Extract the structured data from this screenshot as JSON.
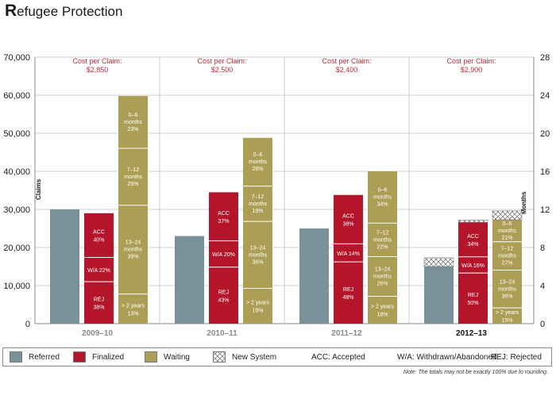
{
  "title": {
    "cap": "R",
    "rest": "efugee Protection"
  },
  "chart_data": {
    "type": "bar",
    "categories": [
      "2009–10",
      "2010–11",
      "2011–12",
      "2012–13"
    ],
    "highlight_category": "2012–13",
    "ylabel": "Claims",
    "ylabel_right": "Months",
    "ylim": [
      0,
      70000
    ],
    "ylim_right": [
      0,
      28
    ],
    "yticks": [
      "0",
      "10,000",
      "20,000",
      "30,000",
      "40,000",
      "50,000",
      "60,000",
      "70,000"
    ],
    "yticks_right": [
      "0",
      "4",
      "8",
      "12",
      "16",
      "20",
      "24",
      "28"
    ],
    "cost_label": "Cost per Claim:",
    "costs": [
      "$2,850",
      "$2,500",
      "$2,400",
      "$2,900"
    ],
    "series": [
      {
        "name": "Referred",
        "values": [
          30000,
          23000,
          25000,
          15000
        ],
        "new_system": [
          0,
          0,
          0,
          2300
        ]
      },
      {
        "name": "Finalized",
        "values": [
          29000,
          34500,
          33800,
          26600
        ],
        "new_system": [
          0,
          0,
          0,
          600
        ],
        "segments": [
          [
            {
              "top": "ACC",
              "bottom": "40%"
            },
            {
              "top": "W/A 22%",
              "bottom": ""
            },
            {
              "top": "REJ",
              "bottom": "38%"
            }
          ],
          [
            {
              "top": "ACC",
              "bottom": "37%"
            },
            {
              "top": "W/A 20%",
              "bottom": ""
            },
            {
              "top": "REJ",
              "bottom": "43%"
            }
          ],
          [
            {
              "top": "ACC",
              "bottom": "38%"
            },
            {
              "top": "W/A 14%",
              "bottom": ""
            },
            {
              "top": "REJ",
              "bottom": "48%"
            }
          ],
          [
            {
              "top": "ACC",
              "bottom": "34%"
            },
            {
              "top": "W/A 16%",
              "bottom": ""
            },
            {
              "top": "REJ",
              "bottom": "50%"
            }
          ]
        ]
      },
      {
        "name": "Waiting",
        "values": [
          59800,
          48800,
          40000,
          27300
        ],
        "new_system": [
          0,
          0,
          0,
          2300
        ],
        "segments": [
          [
            {
              "l1": "0–6",
              "l2": "months",
              "l3": "23%"
            },
            {
              "l1": "7–12",
              "l2": "months",
              "l3": "25%"
            },
            {
              "l1": "13–24",
              "l2": "months",
              "l3": "39%"
            },
            {
              "l1": "> 2 years",
              "l2": "13%",
              "l3": ""
            }
          ],
          [
            {
              "l1": "0–6",
              "l2": "months",
              "l3": "26%"
            },
            {
              "l1": "7–12",
              "l2": "months",
              "l3": "19%"
            },
            {
              "l1": "13–24",
              "l2": "months",
              "l3": "36%"
            },
            {
              "l1": "> 2 years",
              "l2": "19%",
              "l3": ""
            }
          ],
          [
            {
              "l1": "0–6",
              "l2": "months",
              "l3": "34%"
            },
            {
              "l1": "7–12",
              "l2": "months",
              "l3": "22%"
            },
            {
              "l1": "13–24",
              "l2": "months",
              "l3": "26%"
            },
            {
              "l1": "> 2 years",
              "l2": "18%",
              "l3": ""
            }
          ],
          [
            {
              "l1": "0–6",
              "l2": "months",
              "l3": "21%"
            },
            {
              "l1": "7–12",
              "l2": "months",
              "l3": "27%"
            },
            {
              "l1": "13–24",
              "l2": "months",
              "l3": "36%"
            },
            {
              "l1": "> 2 years",
              "l2": "15%",
              "l3": ""
            }
          ]
        ]
      }
    ],
    "colors": {
      "referred": "#7a919c",
      "finalized": "#b5152b",
      "waiting": "#ad9e55",
      "cost": "#c0283a"
    }
  },
  "legend": {
    "referred": "Referred",
    "finalized": "Finalized",
    "waiting": "Waiting",
    "new_system": "New System",
    "acc": "ACC: Accepted",
    "wa": "W/A: Withdrawn/Abandoned",
    "rej": "REJ: Rejected"
  },
  "note": "Note: The totals may not be exactly 100% due to rounding."
}
